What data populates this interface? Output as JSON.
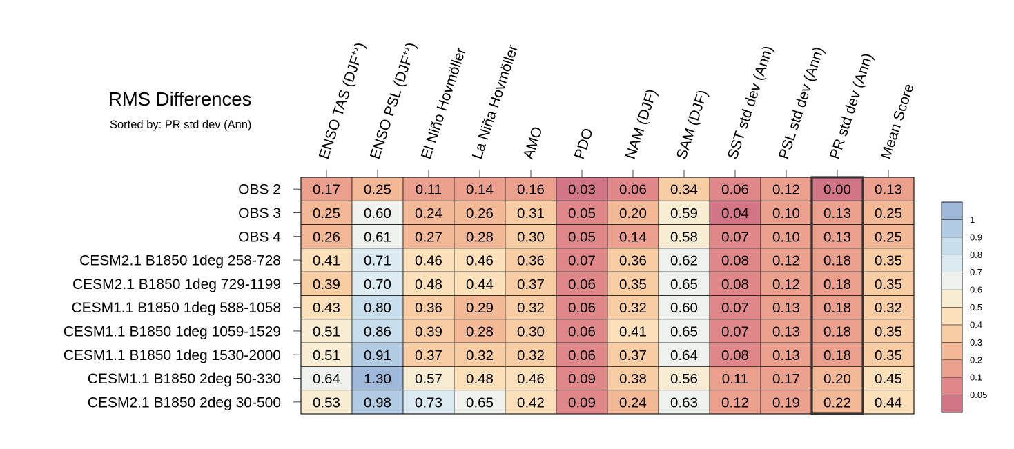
{
  "title": "RMS Differences",
  "subtitle": "Sorted by: PR std dev (Ann)",
  "chart_data": {
    "type": "heatmap",
    "title": "RMS Differences",
    "subtitle": "Sorted by: PR std dev (Ann)",
    "columns": [
      "ENSO TAS (DJF",
      "ENSO PSL (DJF",
      "El Niño Hovmöller",
      "La Niña Hovmöller",
      "AMO",
      "PDO",
      "NAM (DJF)",
      "SAM (DJF)",
      "SST std dev (Ann)",
      "PSL std dev (Ann)",
      "PR std dev (Ann)",
      "Mean Score"
    ],
    "column_superscripts": [
      "+1",
      "+1",
      "",
      "",
      "",
      "",
      "",
      "",
      "",
      "",
      "",
      ""
    ],
    "highlighted_column": "PR std dev (Ann)",
    "rows": [
      "OBS 2",
      "OBS 3",
      "OBS 4",
      "CESM2.1 B1850 1deg 258-728",
      "CESM2.1 B1850 1deg 729-1199",
      "CESM1.1 B1850 1deg 588-1058",
      "CESM1.1 B1850 1deg 1059-1529",
      "CESM1.1 B1850 1deg 1530-2000",
      "CESM1.1 B1850 2deg 50-330",
      "CESM2.1 B1850 2deg 30-500"
    ],
    "values": [
      [
        "0.17",
        "0.25",
        "0.11",
        "0.14",
        "0.16",
        "0.03",
        "0.06",
        "0.34",
        "0.06",
        "0.12",
        "0.00",
        "0.13"
      ],
      [
        "0.25",
        "0.60",
        "0.24",
        "0.26",
        "0.31",
        "0.05",
        "0.20",
        "0.59",
        "0.04",
        "0.10",
        "0.13",
        "0.25"
      ],
      [
        "0.26",
        "0.61",
        "0.27",
        "0.28",
        "0.30",
        "0.05",
        "0.14",
        "0.58",
        "0.07",
        "0.10",
        "0.13",
        "0.25"
      ],
      [
        "0.41",
        "0.71",
        "0.46",
        "0.46",
        "0.36",
        "0.07",
        "0.36",
        "0.62",
        "0.08",
        "0.12",
        "0.18",
        "0.35"
      ],
      [
        "0.39",
        "0.70",
        "0.48",
        "0.44",
        "0.37",
        "0.06",
        "0.35",
        "0.65",
        "0.08",
        "0.12",
        "0.18",
        "0.35"
      ],
      [
        "0.43",
        "0.80",
        "0.36",
        "0.29",
        "0.32",
        "0.06",
        "0.32",
        "0.60",
        "0.07",
        "0.13",
        "0.18",
        "0.32"
      ],
      [
        "0.51",
        "0.86",
        "0.39",
        "0.28",
        "0.30",
        "0.06",
        "0.41",
        "0.65",
        "0.07",
        "0.13",
        "0.18",
        "0.35"
      ],
      [
        "0.51",
        "0.91",
        "0.37",
        "0.32",
        "0.32",
        "0.06",
        "0.37",
        "0.64",
        "0.08",
        "0.13",
        "0.18",
        "0.35"
      ],
      [
        "0.64",
        "1.30",
        "0.57",
        "0.48",
        "0.46",
        "0.09",
        "0.38",
        "0.56",
        "0.11",
        "0.17",
        "0.20",
        "0.45"
      ],
      [
        "0.53",
        "0.98",
        "0.73",
        "0.65",
        "0.42",
        "0.09",
        "0.24",
        "0.63",
        "0.12",
        "0.19",
        "0.22",
        "0.44"
      ]
    ],
    "colorbar": {
      "levels": [
        0.05,
        0.1,
        0.2,
        0.3,
        0.4,
        0.5,
        0.6,
        0.7,
        0.8,
        0.9,
        1
      ],
      "tick_labels": [
        "0.05",
        "0.1",
        "0.2",
        "0.3",
        "0.4",
        "0.5",
        "0.6",
        "0.7",
        "0.8",
        "0.9",
        "1"
      ],
      "colors": [
        "#d27587",
        "#e0878a",
        "#eba08e",
        "#f3b895",
        "#f8cda3",
        "#fbe0b9",
        "#f8edd2",
        "#eef1ec",
        "#dbeaf1",
        "#c8deec",
        "#b1cbe3",
        "#9fb7d8"
      ]
    }
  }
}
